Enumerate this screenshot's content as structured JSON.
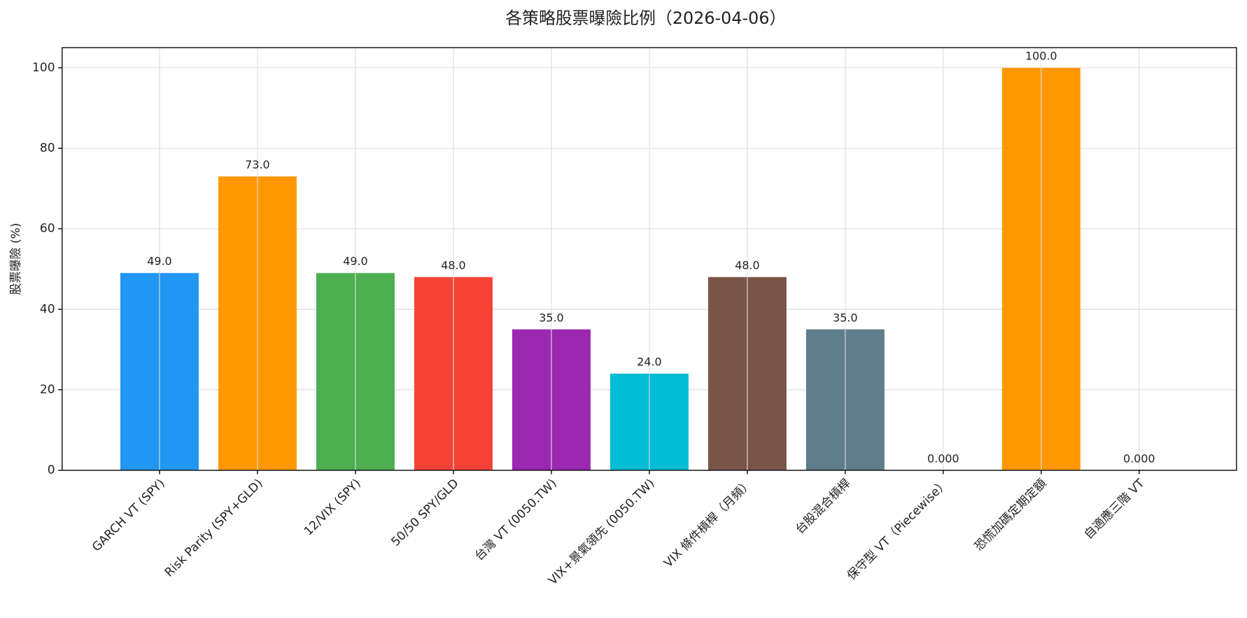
{
  "chart_data": {
    "type": "bar",
    "title": "各策略股票曝險比例（2026-04-06）",
    "y_label": "股票曝險 (%)",
    "categories": [
      "GARCH VT (SPY)",
      "Risk Parity (SPY+GLD)",
      "12/VIX (SPY)",
      "50/50 SPY/GLD",
      "台灣 VT (0050.TW)",
      "VIX+景氣領先 (0050.TW)",
      "VIX 條件槓桿（月頻）",
      "台股混合槓桿",
      "保守型 VT（Piecewise）",
      "恐慌加碼定期定額",
      "自適應三階 VT"
    ],
    "values": [
      49,
      73,
      49,
      48,
      35,
      24,
      48,
      35,
      0,
      100,
      0
    ],
    "value_labels": [
      "49.0",
      "73.0",
      "49.0",
      "48.0",
      "35.0",
      "24.0",
      "48.0",
      "35.0",
      "0.000",
      "100.0",
      "0.000"
    ],
    "colors": [
      "#2196f3",
      "#ff9800",
      "#4caf50",
      "#f44336",
      "#9c27b0",
      "#00bcd4",
      "#795548",
      "#607d8b",
      "#e91e63",
      "#ff9800",
      "#3f51b5"
    ],
    "ylim": [
      0,
      105
    ],
    "yticks": [
      0,
      20,
      40,
      60,
      80,
      100
    ],
    "grid": true
  }
}
